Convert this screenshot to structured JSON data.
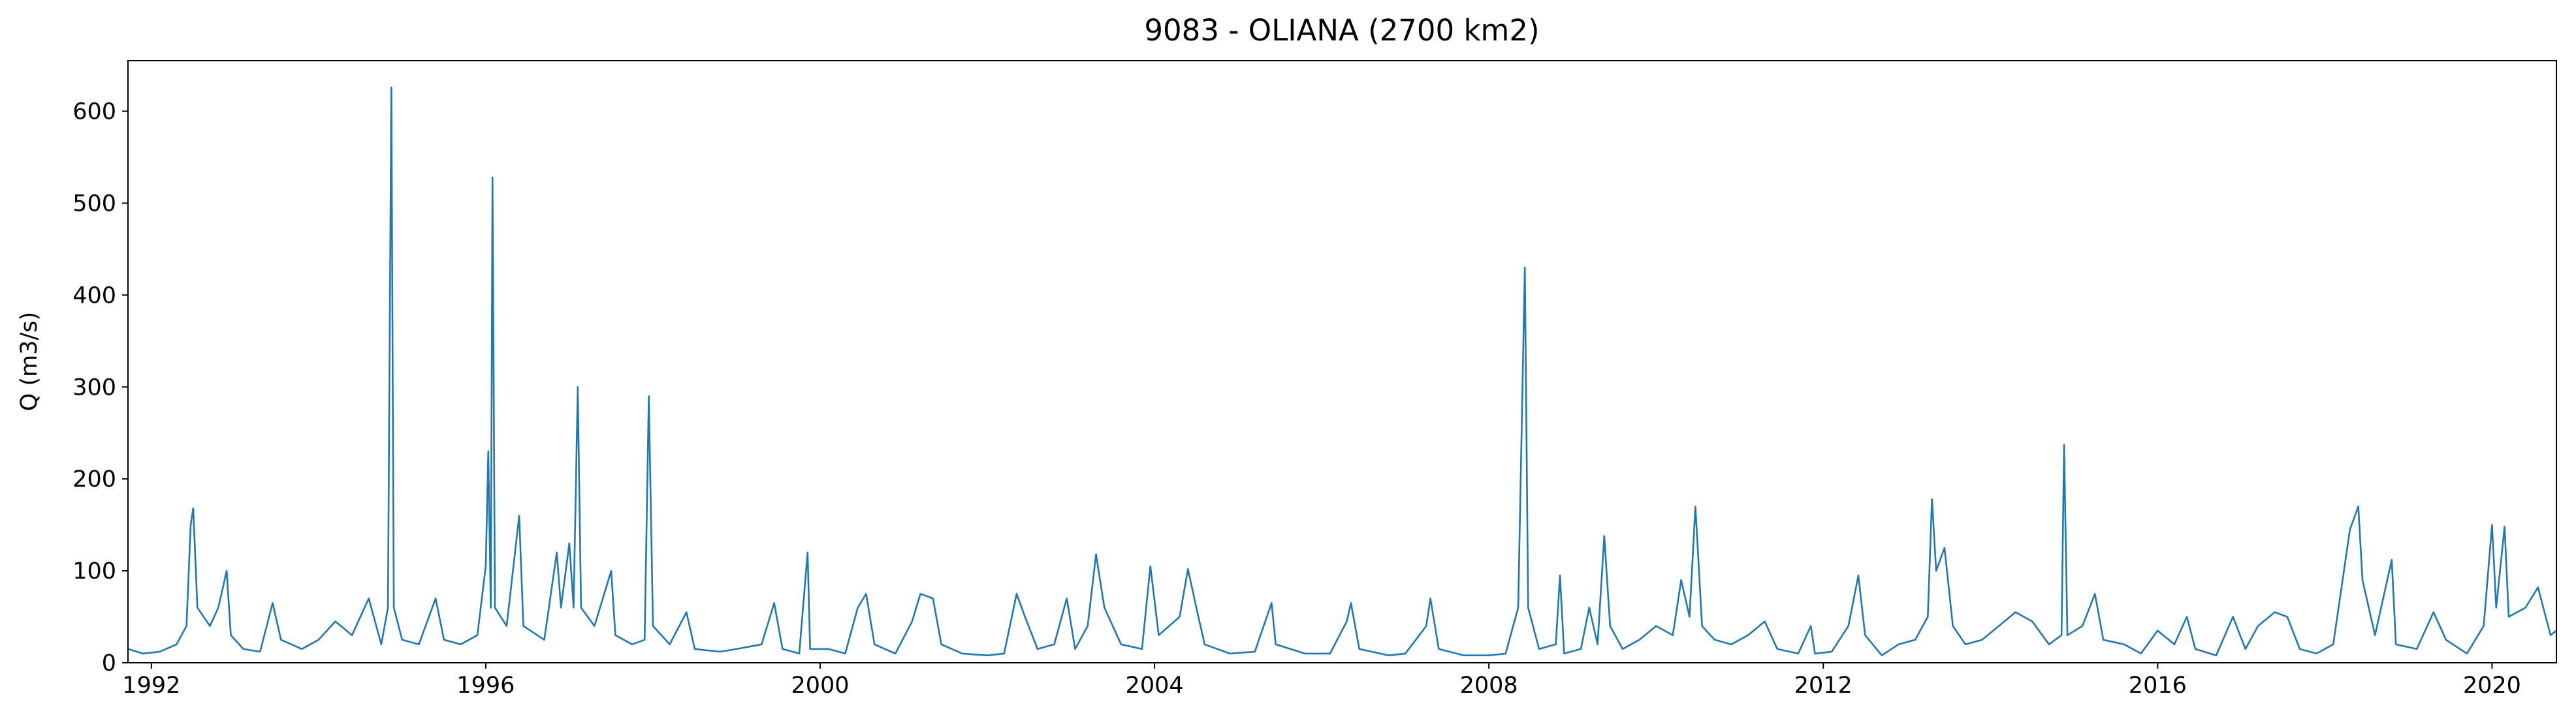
{
  "chart_data": {
    "type": "line",
    "title": "9083 - OLIANA (2700 km2)",
    "y_label": "Q (m3/s)",
    "color": "#1f77b4",
    "xlim": [
      1991.72,
      2020.77
    ],
    "xticks": [
      1992,
      1996,
      2000,
      2004,
      2008,
      2012,
      2016,
      2020
    ],
    "ylim": [
      0,
      655
    ],
    "yticks": [
      0,
      100,
      200,
      300,
      400,
      500,
      600
    ],
    "x": [
      1991.72,
      1991.9,
      1992.1,
      1992.3,
      1992.42,
      1992.47,
      1992.5,
      1992.55,
      1992.7,
      1992.8,
      1992.9,
      1992.95,
      1993.1,
      1993.3,
      1993.45,
      1993.55,
      1993.8,
      1994.0,
      1994.2,
      1994.4,
      1994.6,
      1994.75,
      1994.83,
      1994.87,
      1994.9,
      1995.0,
      1995.2,
      1995.4,
      1995.5,
      1995.7,
      1995.9,
      1996.0,
      1996.03,
      1996.06,
      1996.08,
      1996.11,
      1996.25,
      1996.4,
      1996.45,
      1996.7,
      1996.85,
      1996.9,
      1997.0,
      1997.05,
      1997.1,
      1997.14,
      1997.3,
      1997.5,
      1997.55,
      1997.75,
      1997.9,
      1997.95,
      1998.0,
      1998.2,
      1998.4,
      1998.5,
      1998.8,
      1999.0,
      1999.3,
      1999.45,
      1999.55,
      1999.75,
      1999.85,
      1999.88,
      2000.1,
      2000.3,
      2000.45,
      2000.55,
      2000.65,
      2000.9,
      2001.1,
      2001.2,
      2001.35,
      2001.45,
      2001.7,
      2002.0,
      2002.2,
      2002.35,
      2002.45,
      2002.6,
      2002.8,
      2002.95,
      2003.05,
      2003.2,
      2003.3,
      2003.4,
      2003.6,
      2003.85,
      2003.95,
      2004.05,
      2004.3,
      2004.4,
      2004.5,
      2004.6,
      2004.9,
      2005.2,
      2005.4,
      2005.45,
      2005.8,
      2006.1,
      2006.3,
      2006.35,
      2006.45,
      2006.8,
      2007.0,
      2007.25,
      2007.3,
      2007.4,
      2007.7,
      2008.0,
      2008.2,
      2008.35,
      2008.43,
      2008.47,
      2008.6,
      2008.8,
      2008.85,
      2008.9,
      2009.1,
      2009.2,
      2009.3,
      2009.38,
      2009.45,
      2009.6,
      2009.8,
      2010.0,
      2010.2,
      2010.3,
      2010.4,
      2010.47,
      2010.55,
      2010.7,
      2010.9,
      2011.1,
      2011.3,
      2011.45,
      2011.7,
      2011.85,
      2011.9,
      2012.1,
      2012.3,
      2012.42,
      2012.5,
      2012.7,
      2012.9,
      2013.1,
      2013.25,
      2013.3,
      2013.35,
      2013.45,
      2013.55,
      2013.7,
      2013.9,
      2014.1,
      2014.3,
      2014.5,
      2014.7,
      2014.85,
      2014.88,
      2014.92,
      2015.1,
      2015.25,
      2015.35,
      2015.6,
      2015.8,
      2016.0,
      2016.2,
      2016.35,
      2016.45,
      2016.7,
      2016.9,
      2017.05,
      2017.2,
      2017.4,
      2017.55,
      2017.7,
      2017.9,
      2018.1,
      2018.3,
      2018.4,
      2018.45,
      2018.6,
      2018.8,
      2018.85,
      2019.1,
      2019.3,
      2019.45,
      2019.7,
      2019.9,
      2020.0,
      2020.05,
      2020.15,
      2020.2,
      2020.4,
      2020.55,
      2020.7,
      2020.77
    ],
    "values": [
      15,
      10,
      12,
      20,
      40,
      150,
      168,
      60,
      40,
      60,
      100,
      30,
      15,
      12,
      65,
      25,
      15,
      25,
      45,
      30,
      70,
      20,
      60,
      626,
      60,
      25,
      20,
      70,
      25,
      20,
      30,
      105,
      230,
      60,
      528,
      60,
      40,
      160,
      40,
      25,
      120,
      60,
      130,
      60,
      300,
      60,
      40,
      100,
      30,
      20,
      25,
      290,
      40,
      20,
      55,
      15,
      12,
      15,
      20,
      65,
      15,
      10,
      120,
      15,
      15,
      10,
      60,
      75,
      20,
      10,
      45,
      75,
      70,
      20,
      10,
      8,
      10,
      75,
      50,
      15,
      20,
      70,
      15,
      40,
      118,
      60,
      20,
      15,
      105,
      30,
      50,
      102,
      60,
      20,
      10,
      12,
      65,
      20,
      10,
      10,
      45,
      65,
      15,
      8,
      10,
      40,
      70,
      15,
      8,
      8,
      10,
      60,
      430,
      60,
      15,
      20,
      95,
      10,
      15,
      60,
      20,
      138,
      40,
      15,
      25,
      40,
      30,
      90,
      50,
      170,
      40,
      25,
      20,
      30,
      45,
      15,
      10,
      40,
      10,
      12,
      40,
      95,
      30,
      8,
      20,
      25,
      50,
      178,
      100,
      125,
      40,
      20,
      25,
      40,
      55,
      45,
      20,
      30,
      237,
      30,
      40,
      75,
      25,
      20,
      10,
      35,
      20,
      50,
      15,
      8,
      50,
      15,
      40,
      55,
      50,
      15,
      10,
      20,
      145,
      170,
      90,
      30,
      112,
      20,
      15,
      55,
      25,
      10,
      40,
      150,
      60,
      148,
      50,
      60,
      82,
      30,
      35
    ]
  }
}
